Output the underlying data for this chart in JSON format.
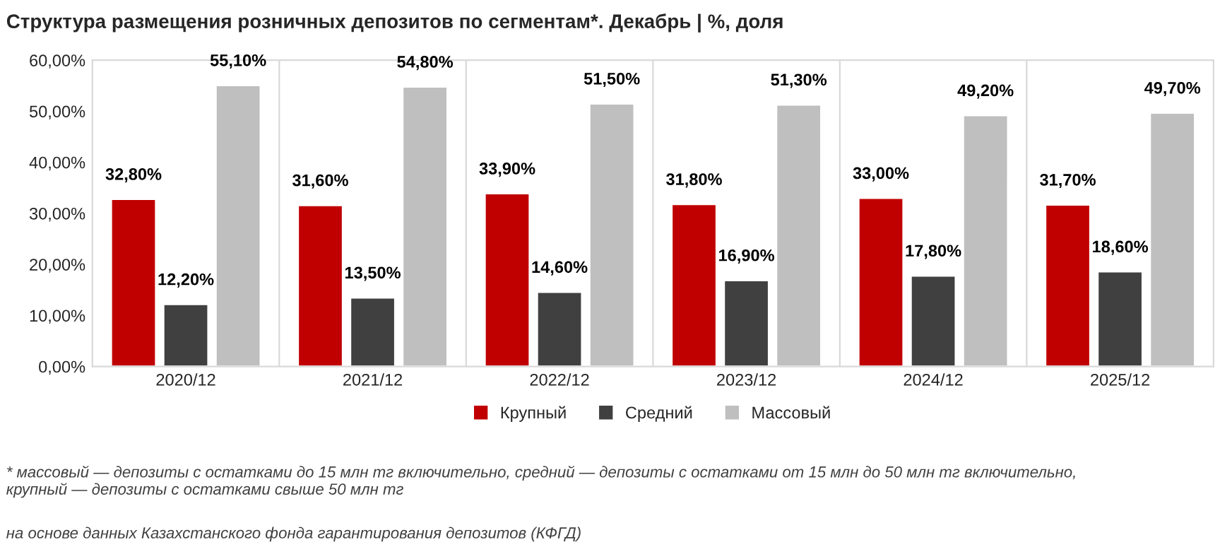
{
  "chart_data": {
    "type": "bar",
    "title": "Структура размещения розничных депозитов по сегментам*. Декабрь | %, доля",
    "categories": [
      "2020/12",
      "2021/12",
      "2022/12",
      "2023/12",
      "2024/12",
      "2025/12"
    ],
    "series": [
      {
        "name": "Крупный",
        "color": "#c00000",
        "values": [
          32.8,
          31.6,
          33.9,
          31.8,
          33.0,
          31.7
        ],
        "value_labels": [
          "32,80%",
          "31,60%",
          "33,90%",
          "31,80%",
          "33,00%",
          "31,70%"
        ]
      },
      {
        "name": "Средний",
        "color": "#404040",
        "values": [
          12.2,
          13.5,
          14.6,
          16.9,
          17.8,
          18.6
        ],
        "value_labels": [
          "12,20%",
          "13,50%",
          "14,60%",
          "16,90%",
          "17,80%",
          "18,60%"
        ]
      },
      {
        "name": "Массовый",
        "color": "#bfbfbf",
        "values": [
          55.1,
          54.8,
          51.5,
          51.3,
          49.2,
          49.7
        ],
        "value_labels": [
          "55,10%",
          "54,80%",
          "51,50%",
          "51,30%",
          "49,20%",
          "49,70%"
        ]
      }
    ],
    "ylim": [
      0,
      60
    ],
    "yticks": [
      {
        "value": 0,
        "label": "0,00%"
      },
      {
        "value": 10,
        "label": "10,00%"
      },
      {
        "value": 20,
        "label": "20,00%"
      },
      {
        "value": 30,
        "label": "30,00%"
      },
      {
        "value": 40,
        "label": "40,00%"
      },
      {
        "value": 50,
        "label": "50,00%"
      },
      {
        "value": 60,
        "label": "60,00%"
      }
    ],
    "grid": "x",
    "legend": "bottom",
    "annotations": [
      "* массовый — депозиты с остатками до 15 млн тг включительно, средний — депозиты с остатками от 15 млн до 50 млн тг включительно,\nкрупный — депозиты с остатками свыше 50 млн тг",
      "на основе данных Казахстанского фонда гарантирования депозитов (КФГД)"
    ]
  }
}
